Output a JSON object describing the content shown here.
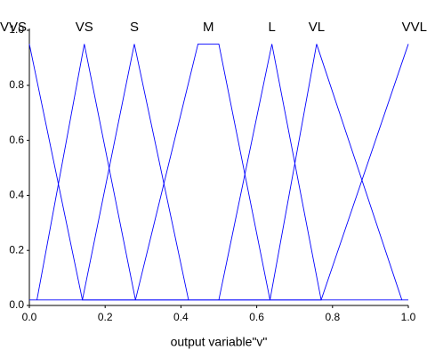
{
  "chart_data": {
    "type": "line",
    "xlabel": "output variable\"v\"",
    "xlim": [
      0,
      1
    ],
    "ylim": [
      0,
      1
    ],
    "xticks": [
      {
        "value": 0,
        "label": "0.0"
      },
      0.2,
      0.4,
      0.6,
      0.8,
      {
        "value": 1,
        "label": "1.0"
      }
    ],
    "yticks": [
      {
        "value": 0,
        "label": "0.0"
      },
      0.2,
      0.4,
      0.6,
      0.8,
      {
        "value": 1,
        "label": "1.0"
      }
    ],
    "series": [
      {
        "name": "VVS",
        "color": "#0000ff",
        "x": [
          0,
          0.14,
          1
        ],
        "values": [
          0.95,
          0.02,
          0.02
        ]
      },
      {
        "name": "VS",
        "color": "#0000ff",
        "x": [
          0.02,
          0.145,
          0.28
        ],
        "values": [
          0.02,
          0.95,
          0.02
        ]
      },
      {
        "name": "S",
        "color": "#0000ff",
        "x": [
          0.14,
          0.277,
          0.42
        ],
        "values": [
          0.02,
          0.95,
          0.02
        ]
      },
      {
        "name": "M",
        "color": "#0000ff",
        "x": [
          0.28,
          0.445,
          0.5,
          0.635
        ],
        "values": [
          0.02,
          0.95,
          0.95,
          0.02
        ]
      },
      {
        "name": "L",
        "color": "#0000ff",
        "x": [
          0.5,
          0.64,
          0.77
        ],
        "values": [
          0.02,
          0.95,
          0.02
        ]
      },
      {
        "name": "VL",
        "color": "#0000ff",
        "x": [
          0.635,
          0.758,
          0.983
        ],
        "values": [
          0.02,
          0.95,
          0.02
        ]
      },
      {
        "name": "VVL",
        "color": "#0000ff",
        "x": [
          0,
          0.77,
          1
        ],
        "values": [
          0.02,
          0.02,
          0.95
        ]
      }
    ]
  }
}
